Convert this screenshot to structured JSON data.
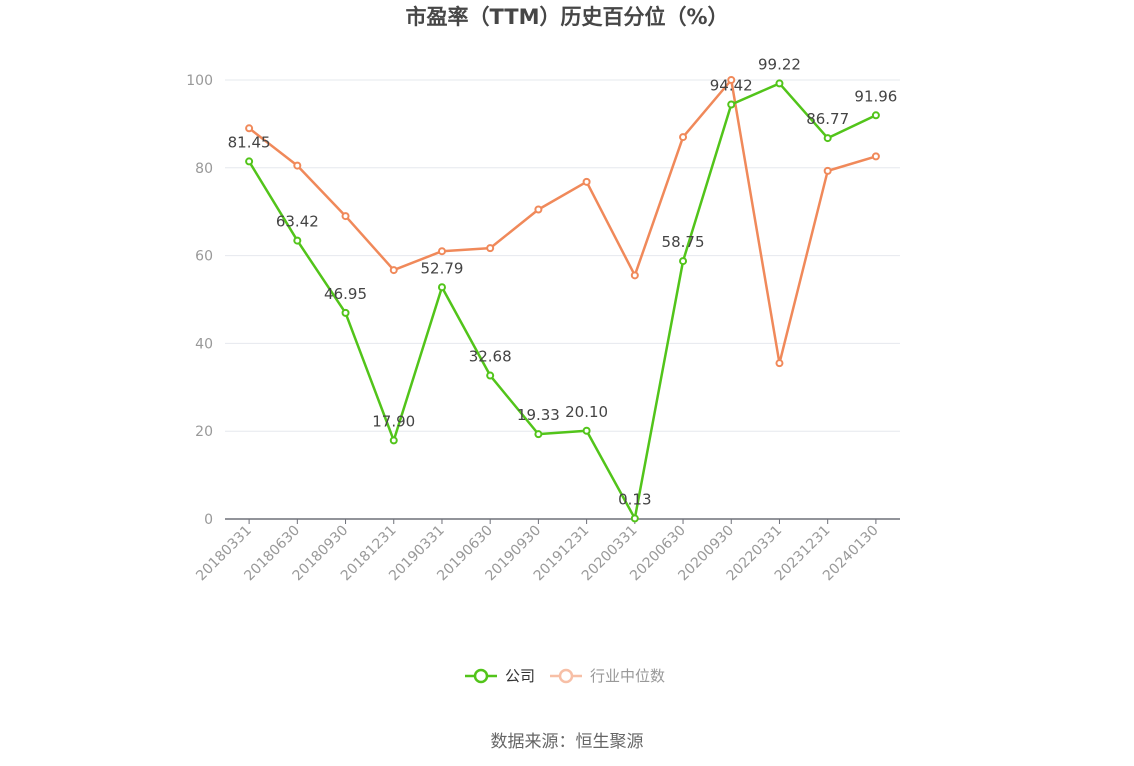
{
  "chart_data": {
    "type": "line",
    "title": "市盈率（TTM）历史百分位（%）",
    "categories": [
      "20180331",
      "20180630",
      "20180930",
      "20181231",
      "20190331",
      "20190630",
      "20190930",
      "20191231",
      "20200331",
      "20200630",
      "20200930",
      "20220331",
      "20231231",
      "20240130"
    ],
    "series": [
      {
        "name": "公司",
        "color": "#52c41a",
        "values": [
          81.45,
          63.42,
          46.95,
          17.9,
          52.79,
          32.68,
          19.33,
          20.1,
          0.13,
          58.75,
          94.42,
          99.22,
          86.77,
          91.96
        ],
        "value_labels": [
          "81.45",
          "63.42",
          "46.95",
          "17.90",
          "52.79",
          "32.68",
          "19.33",
          "20.10",
          "0.13",
          "58.75",
          "94.42",
          "99.22",
          "86.77",
          "91.96"
        ],
        "show_labels": true
      },
      {
        "name": "行业中位数",
        "color": "#f0895a",
        "legend_color": "#f7bfa6",
        "values": [
          89,
          80.5,
          69,
          56.7,
          61,
          61.7,
          70.5,
          76.8,
          55.5,
          87,
          100,
          35.5,
          79.3,
          82.6
        ],
        "show_labels": false
      }
    ],
    "ylim": [
      0,
      100
    ],
    "yticks": [
      0,
      20,
      40,
      60,
      80,
      100
    ],
    "ytick_labels": [
      "0",
      "20",
      "40",
      "60",
      "80",
      "100"
    ],
    "grid": true,
    "legend_position": "bottom-center",
    "source": "数据来源：恒生聚源"
  }
}
